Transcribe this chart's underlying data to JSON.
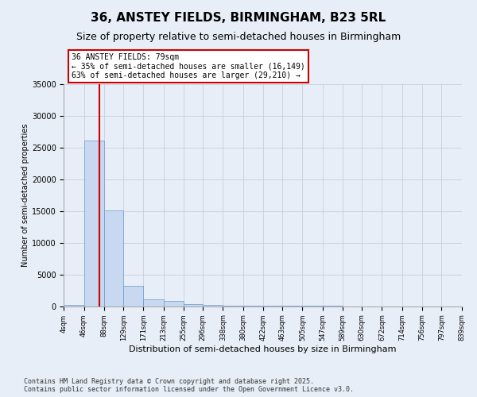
{
  "title": "36, ANSTEY FIELDS, BIRMINGHAM, B23 5RL",
  "subtitle": "Size of property relative to semi-detached houses in Birmingham",
  "xlabel": "Distribution of semi-detached houses by size in Birmingham",
  "ylabel": "Number of semi-detached properties",
  "bin_edges": [
    4,
    46,
    88,
    129,
    171,
    213,
    255,
    296,
    338,
    380,
    422,
    463,
    505,
    547,
    589,
    630,
    672,
    714,
    756,
    797,
    839
  ],
  "bin_counts": [
    200,
    26100,
    15100,
    3200,
    1100,
    900,
    300,
    200,
    100,
    80,
    60,
    50,
    40,
    30,
    20,
    18,
    15,
    12,
    10,
    8
  ],
  "bar_color": "#c8d8f0",
  "bar_edge_color": "#6699cc",
  "property_size": 79,
  "annotation_line1": "36 ANSTEY FIELDS: 79sqm",
  "annotation_line2": "← 35% of semi-detached houses are smaller (16,149)",
  "annotation_line3": "63% of semi-detached houses are larger (29,210) →",
  "annotation_box_color": "white",
  "annotation_box_edge_color": "#cc0000",
  "vline_color": "#cc0000",
  "grid_color": "#c0c8d8",
  "background_color": "#e8eef8",
  "footer_text": "Contains HM Land Registry data © Crown copyright and database right 2025.\nContains public sector information licensed under the Open Government Licence v3.0.",
  "ylim": [
    0,
    35000
  ],
  "yticks": [
    0,
    5000,
    10000,
    15000,
    20000,
    25000,
    30000,
    35000
  ]
}
